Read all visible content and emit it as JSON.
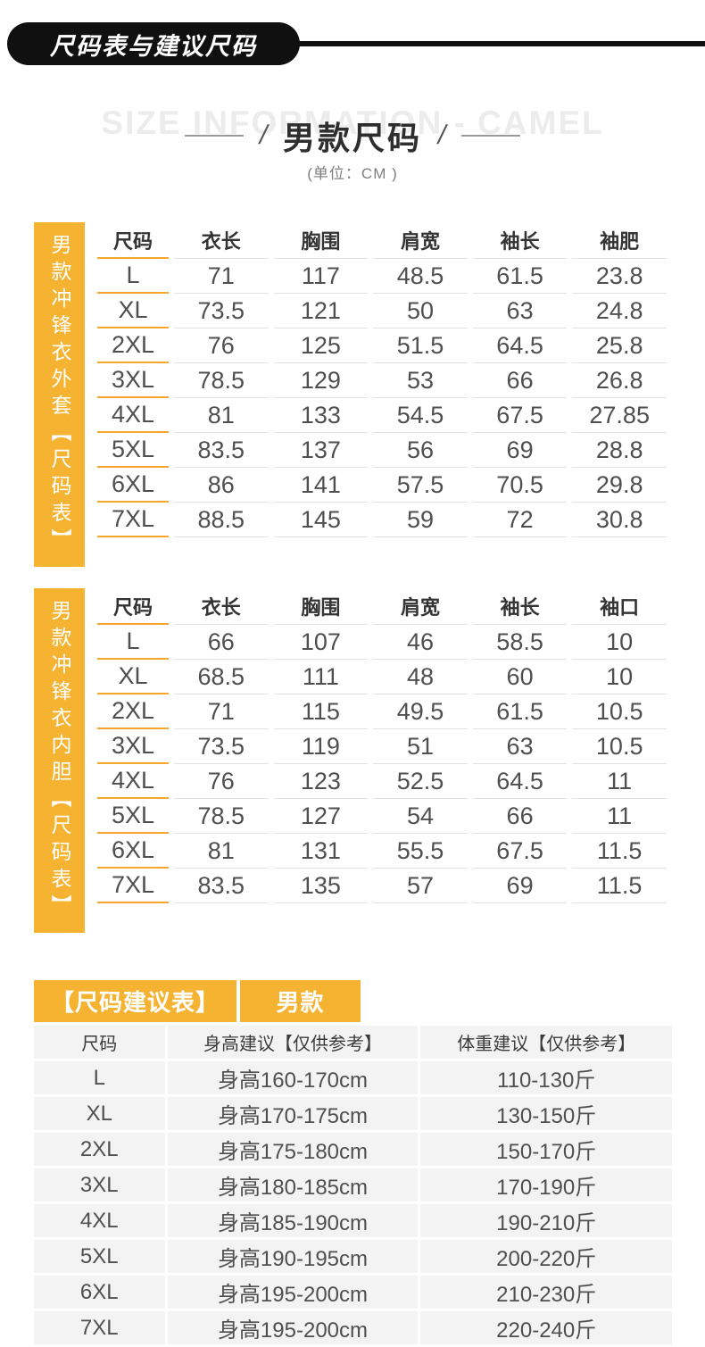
{
  "banner": {
    "title": "尺码表与建议尺码"
  },
  "header": {
    "watermark": "SIZE INFORMATION - CAMEL",
    "slash_left": "/",
    "title": "男款尺码",
    "slash_right": "/",
    "subtitle": "(单位：CM )"
  },
  "size_tables": [
    {
      "sidebar_label_main": "男款冲锋衣外套",
      "sidebar_label_sub": "【尺码表】",
      "columns": [
        "尺码",
        "衣长",
        "胸围",
        "肩宽",
        "袖长",
        "袖肥"
      ],
      "rows": [
        [
          "L",
          "71",
          "117",
          "48.5",
          "61.5",
          "23.8"
        ],
        [
          "XL",
          "73.5",
          "121",
          "50",
          "63",
          "24.8"
        ],
        [
          "2XL",
          "76",
          "125",
          "51.5",
          "64.5",
          "25.8"
        ],
        [
          "3XL",
          "78.5",
          "129",
          "53",
          "66",
          "26.8"
        ],
        [
          "4XL",
          "81",
          "133",
          "54.5",
          "67.5",
          "27.85"
        ],
        [
          "5XL",
          "83.5",
          "137",
          "56",
          "69",
          "28.8"
        ],
        [
          "6XL",
          "86",
          "141",
          "57.5",
          "70.5",
          "29.8"
        ],
        [
          "7XL",
          "88.5",
          "145",
          "59",
          "72",
          "30.8"
        ]
      ]
    },
    {
      "sidebar_label_main": "男款冲锋衣内胆",
      "sidebar_label_sub": "【尺码表】",
      "columns": [
        "尺码",
        "衣长",
        "胸围",
        "肩宽",
        "袖长",
        "袖口"
      ],
      "rows": [
        [
          "L",
          "66",
          "107",
          "46",
          "58.5",
          "10"
        ],
        [
          "XL",
          "68.5",
          "111",
          "48",
          "60",
          "10"
        ],
        [
          "2XL",
          "71",
          "115",
          "49.5",
          "61.5",
          "10.5"
        ],
        [
          "3XL",
          "73.5",
          "119",
          "51",
          "63",
          "10.5"
        ],
        [
          "4XL",
          "76",
          "123",
          "52.5",
          "64.5",
          "11"
        ],
        [
          "5XL",
          "78.5",
          "127",
          "54",
          "66",
          "11"
        ],
        [
          "6XL",
          "81",
          "131",
          "55.5",
          "67.5",
          "11.5"
        ],
        [
          "7XL",
          "83.5",
          "135",
          "57",
          "69",
          "11.5"
        ]
      ]
    }
  ],
  "suggestion_table": {
    "tab_left": "【尺码建议表】",
    "tab_right": "男款",
    "columns": [
      "尺码",
      "身高建议【仅供参考】",
      "体重建议【仅供参考】"
    ],
    "rows": [
      [
        "L",
        "身高160-170cm",
        "110-130斤"
      ],
      [
        "XL",
        "身高170-175cm",
        "130-150斤"
      ],
      [
        "2XL",
        "身高175-180cm",
        "150-170斤"
      ],
      [
        "3XL",
        "身高180-185cm",
        "170-190斤"
      ],
      [
        "4XL",
        "身高185-190cm",
        "190-210斤"
      ],
      [
        "5XL",
        "身高190-195cm",
        "200-220斤"
      ],
      [
        "6XL",
        "身高195-200cm",
        "210-230斤"
      ],
      [
        "7XL",
        "身高195-200cm",
        "220-240斤"
      ]
    ]
  },
  "colors": {
    "accent_yellow": "#f5b331",
    "underline_yellow": "#f5a62b",
    "banner_black": "#101010",
    "row_gray": "#f3f3f3",
    "line_gray": "#e2e2e2"
  }
}
